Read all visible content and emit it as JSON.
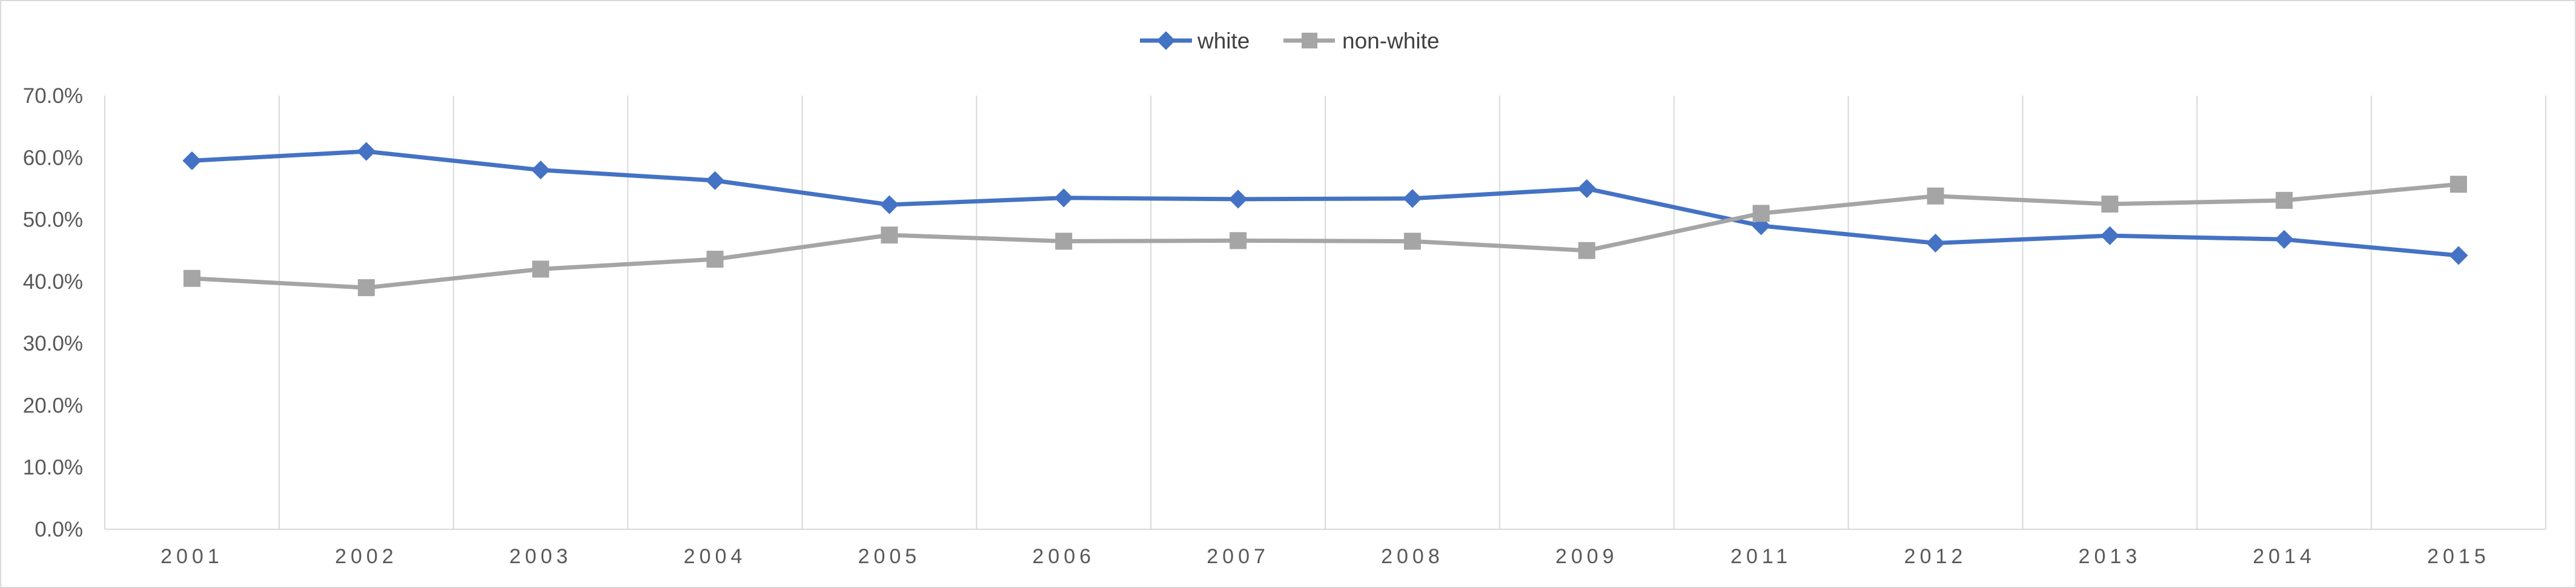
{
  "chart_data": {
    "type": "line",
    "title": "",
    "xlabel": "",
    "ylabel": "",
    "categories": [
      "2001",
      "2002",
      "2003",
      "2004",
      "2005",
      "2006",
      "2007",
      "2008",
      "2009",
      "2011",
      "2012",
      "2013",
      "2014",
      "2015"
    ],
    "ylim": [
      0,
      0.7
    ],
    "yticks": [
      0,
      0.1,
      0.2,
      0.3,
      0.4,
      0.5,
      0.6,
      0.7
    ],
    "ytick_labels": [
      "0.0%",
      "10.0%",
      "20.0%",
      "30.0%",
      "40.0%",
      "50.0%",
      "60.0%",
      "70.0%"
    ],
    "grid": "vertical-only",
    "legend_position": "top-center",
    "series": [
      {
        "name": "white",
        "color": "#4472c4",
        "marker": "diamond",
        "values": [
          0.595,
          0.61,
          0.58,
          0.563,
          0.524,
          0.535,
          0.533,
          0.534,
          0.55,
          0.49,
          0.462,
          0.474,
          0.468,
          0.442
        ]
      },
      {
        "name": "non-white",
        "color": "#a5a5a5",
        "marker": "square",
        "values": [
          0.405,
          0.39,
          0.42,
          0.436,
          0.475,
          0.465,
          0.466,
          0.465,
          0.45,
          0.51,
          0.538,
          0.525,
          0.531,
          0.557
        ]
      }
    ]
  },
  "colors": {
    "axis": "#d9d9d9",
    "gridline": "#d9d9d9",
    "tick_text": "#595959"
  }
}
